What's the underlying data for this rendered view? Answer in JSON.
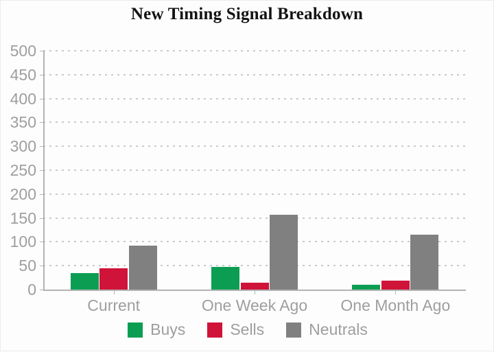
{
  "title": "New Timing Signal Breakdown",
  "chart_data": {
    "type": "bar",
    "title": "New Timing Signal Breakdown",
    "categories": [
      "Current",
      "One Week Ago",
      "One Month Ago"
    ],
    "series": [
      {
        "name": "Buys",
        "color": "#0b9e53",
        "values": [
          35,
          48,
          10
        ]
      },
      {
        "name": "Sells",
        "color": "#d01339",
        "values": [
          45,
          14,
          18
        ]
      },
      {
        "name": "Neutrals",
        "color": "#808080",
        "values": [
          92,
          157,
          115
        ]
      }
    ],
    "ylim": [
      0,
      500
    ],
    "ytick_interval": 50,
    "yticks": [
      0,
      50,
      100,
      150,
      200,
      250,
      300,
      350,
      400,
      450,
      500
    ],
    "xlabel": "",
    "ylabel": "",
    "grid": "horizontal-dotted",
    "legend_position": "bottom"
  },
  "colors": {
    "title_text": "#141414",
    "axis_text": "#9e9e9e",
    "axis_line": "#b3b3b3",
    "gridline": "#c9c9c9",
    "background": "#fdfdfd"
  }
}
